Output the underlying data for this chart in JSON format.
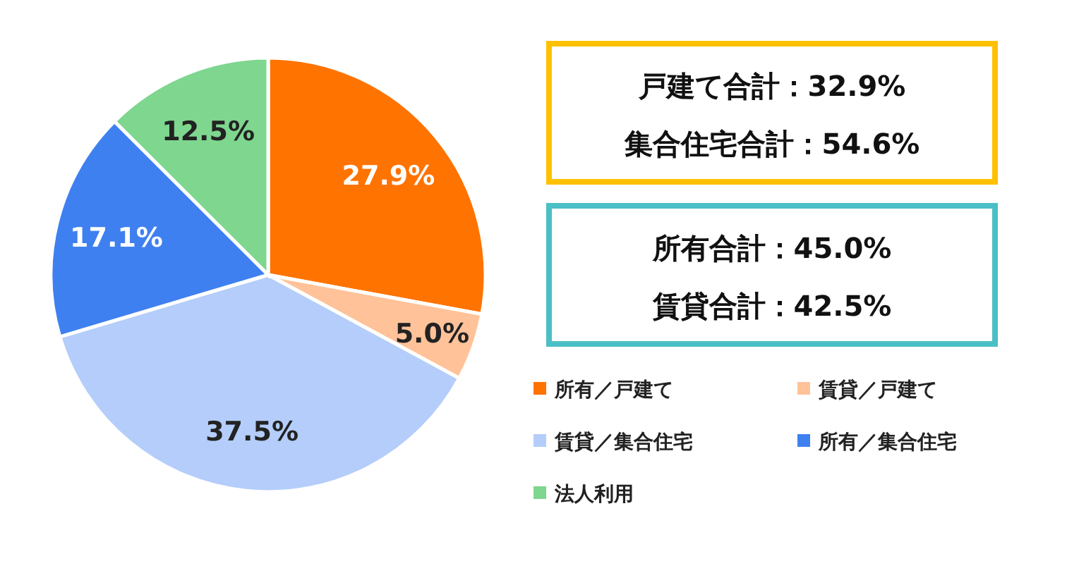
{
  "chart_data": {
    "type": "pie",
    "categories": [
      "所有／戸建て",
      "賃貸／戸建て",
      "賃貸／集合住宅",
      "所有／集合住宅",
      "法人利用"
    ],
    "values": [
      27.9,
      5.0,
      37.5,
      17.1,
      12.5
    ],
    "colors": [
      "#ff7300",
      "#ffc299",
      "#b4cdfa",
      "#3f80f0",
      "#7ed68f"
    ],
    "value_labels": [
      "27.9%",
      "5.0%",
      "37.5%",
      "17.1%",
      "12.5%"
    ],
    "annotations": [
      "戸建て合計：32.9%",
      "集合住宅合計：54.6%",
      "所有合計：45.0%",
      "賃貸合計：42.5%"
    ],
    "legend": "bottom right"
  }
}
